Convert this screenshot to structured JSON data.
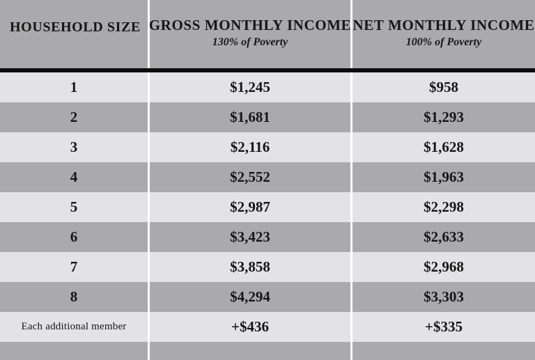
{
  "table": {
    "columns": [
      {
        "label": "HOUSEHOLD SIZE",
        "sublabel": ""
      },
      {
        "label": "GROSS MONTHLY INCOME",
        "sublabel": "130% of Poverty"
      },
      {
        "label": "NET MONTHLY INCOME",
        "sublabel": "100% of Poverty"
      }
    ],
    "rows": [
      {
        "size": "1",
        "gross": "$1,245",
        "net": "$958"
      },
      {
        "size": "2",
        "gross": "$1,681",
        "net": "$1,293"
      },
      {
        "size": "3",
        "gross": "$2,116",
        "net": "$1,628"
      },
      {
        "size": "4",
        "gross": "$2,552",
        "net": "$1,963"
      },
      {
        "size": "5",
        "gross": "$2,987",
        "net": "$2,298"
      },
      {
        "size": "6",
        "gross": "$3,423",
        "net": "$2,633"
      },
      {
        "size": "7",
        "gross": "$3,858",
        "net": "$2,968"
      },
      {
        "size": "8",
        "gross": "$4,294",
        "net": "$3,303"
      },
      {
        "size": "Each additional member",
        "gross": "+$436",
        "net": "+$335"
      }
    ]
  },
  "colors": {
    "header_bg": "#aaaaac",
    "row_dark_bg": "#aaaaac",
    "row_light_bg": "#e3e3e5",
    "divider_rule": "#0c0c0c",
    "column_separator": "#ffffff",
    "text": "#161616"
  },
  "chart_data": {
    "type": "table",
    "columns": [
      "HOUSEHOLD SIZE",
      "GROSS MONTHLY INCOME (130% of Poverty)",
      "NET MONTHLY INCOME (100% of Poverty)"
    ],
    "rows": [
      [
        "1",
        "$1,245",
        "$958"
      ],
      [
        "2",
        "$1,681",
        "$1,293"
      ],
      [
        "3",
        "$2,116",
        "$1,628"
      ],
      [
        "4",
        "$2,552",
        "$1,963"
      ],
      [
        "5",
        "$2,987",
        "$2,298"
      ],
      [
        "6",
        "$3,423",
        "$2,633"
      ],
      [
        "7",
        "$3,858",
        "$2,968"
      ],
      [
        "8",
        "$4,294",
        "$3,303"
      ],
      [
        "Each additional member",
        "+$436",
        "+$335"
      ]
    ]
  }
}
